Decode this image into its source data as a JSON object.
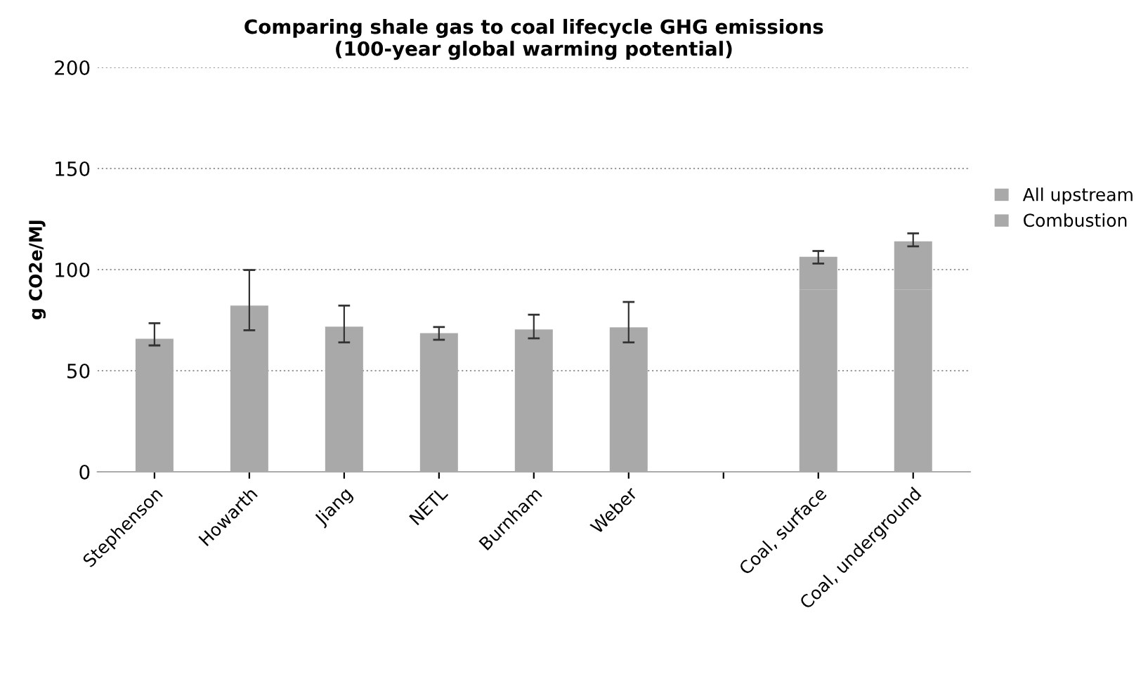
{
  "chart_data": {
    "type": "bar",
    "title": "Comparing shale gas to coal lifecycle GHG emissions\n(100-year global warming potential)",
    "ylabel": "g CO2e/MJ",
    "categories": [
      "Stephenson",
      "Howarth",
      "Jiang",
      "NETL",
      "Burnham",
      "Weber",
      null,
      "Coal, surface",
      "Coal, underground"
    ],
    "stacked": true,
    "series": [
      {
        "name": "Combustion",
        "color": "#a9a9a9",
        "values": [
          50,
          50,
          50,
          50,
          50,
          50,
          null,
          90,
          90
        ]
      },
      {
        "name": "All upstream",
        "color": "#a9a9a9",
        "values": [
          15.8,
          32.2,
          21.8,
          18.6,
          20.4,
          21.4,
          null,
          16.3,
          24
        ],
        "errors": [
          [
            62.5,
            73.5
          ],
          [
            70,
            99.8
          ],
          [
            64,
            82.2
          ],
          [
            65.3,
            71.6
          ],
          [
            66,
            77.7
          ],
          [
            64,
            84
          ],
          null,
          [
            103,
            109.2
          ],
          [
            111.5,
            117.9
          ]
        ]
      }
    ],
    "ylim": [
      0,
      200
    ],
    "yticks": [
      0,
      50,
      100,
      150,
      200
    ],
    "grid": "y",
    "legend": "right"
  }
}
